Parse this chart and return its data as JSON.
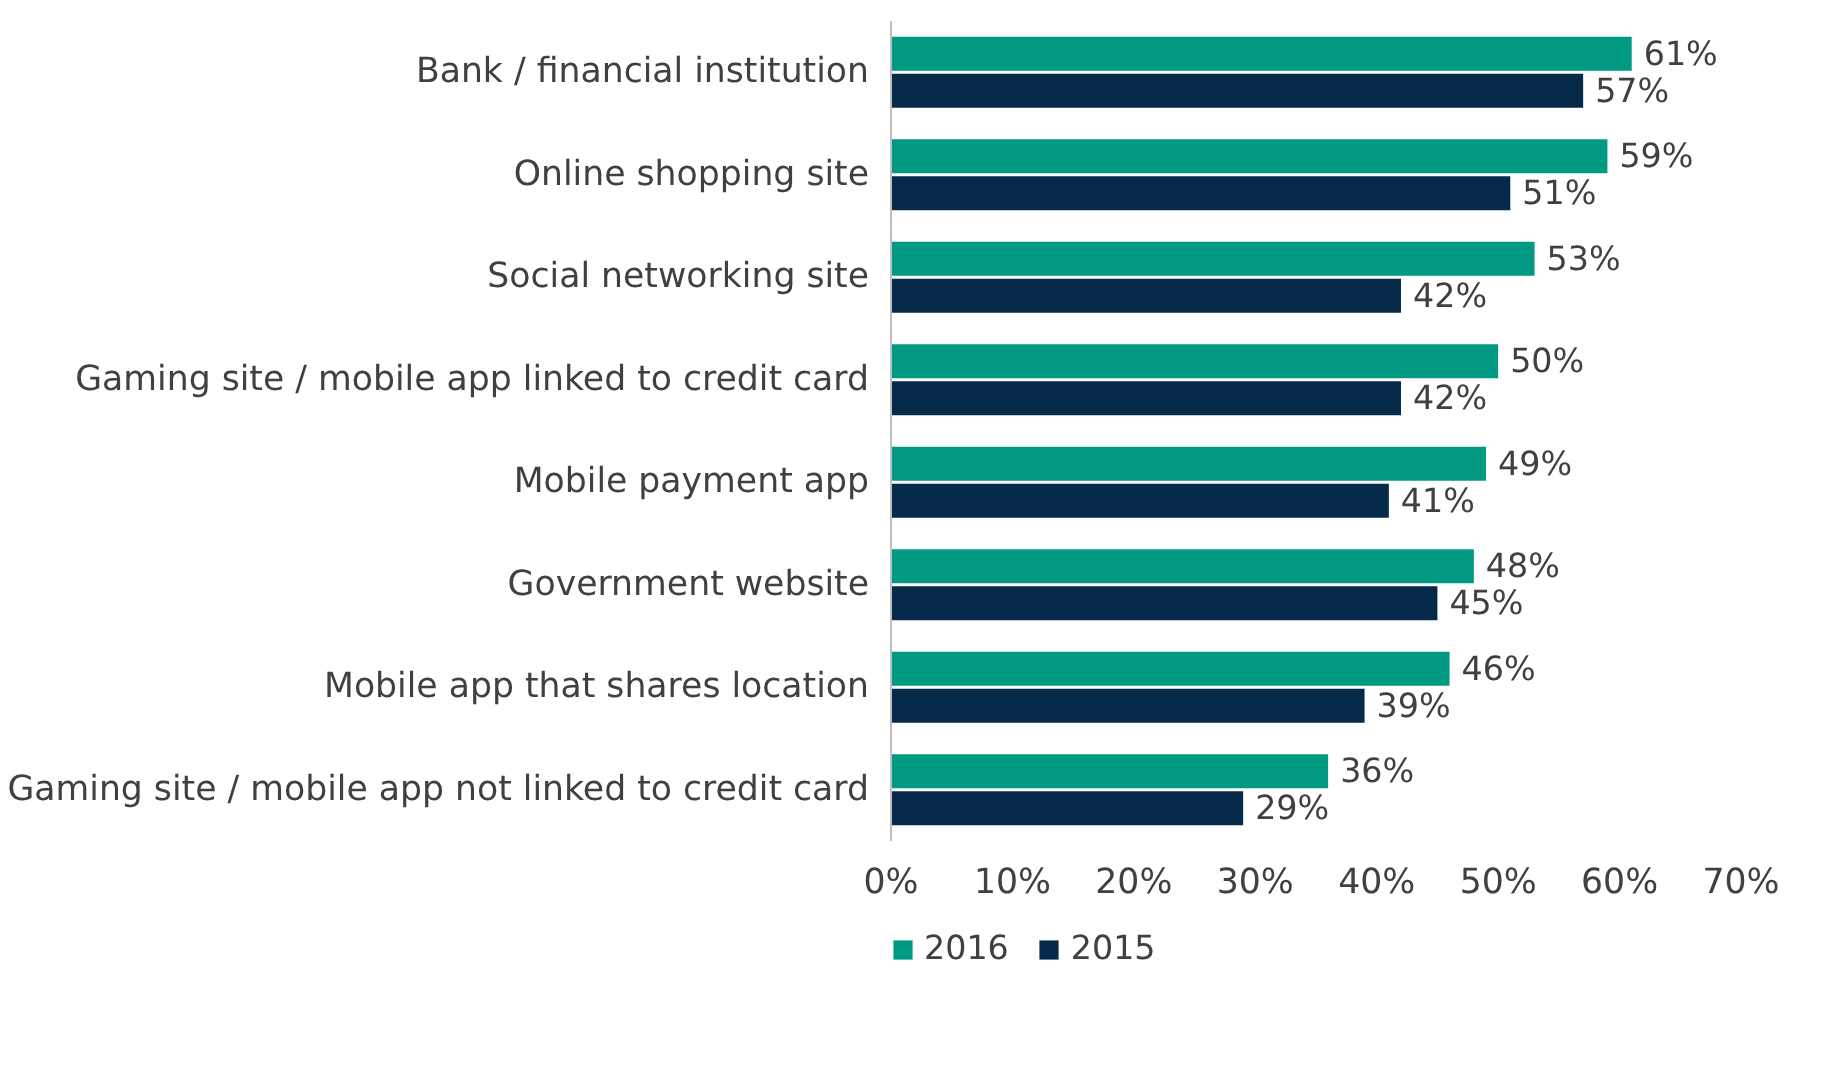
{
  "chart_data": {
    "type": "bar",
    "orientation": "horizontal",
    "categories": [
      "Bank / financial institution",
      "Online shopping site",
      "Social networking site",
      "Gaming site / mobile app linked to credit card",
      "Mobile payment app",
      "Government website",
      "Mobile app that shares location",
      "Gaming site / mobile app not linked to credit card"
    ],
    "series": [
      {
        "name": "2016",
        "color": "#009a82",
        "values": [
          61,
          59,
          53,
          50,
          49,
          48,
          46,
          36
        ],
        "value_labels": [
          "61%",
          "59%",
          "53%",
          "50%",
          "49%",
          "48%",
          "46%",
          "36%"
        ]
      },
      {
        "name": "2015",
        "color": "#062a4a",
        "values": [
          57,
          51,
          42,
          42,
          41,
          45,
          39,
          29
        ],
        "value_labels": [
          "57%",
          "51%",
          "42%",
          "42%",
          "41%",
          "45%",
          "39%",
          "29%"
        ]
      }
    ],
    "xlim": [
      0,
      70
    ],
    "xticks": [
      {
        "value": 0,
        "label": "0%"
      },
      {
        "value": 10,
        "label": "10%"
      },
      {
        "value": 20,
        "label": "20%"
      },
      {
        "value": 30,
        "label": "30%"
      },
      {
        "value": 40,
        "label": "40%"
      },
      {
        "value": 50,
        "label": "50%"
      },
      {
        "value": 60,
        "label": "60%"
      },
      {
        "value": 70,
        "label": "70%"
      }
    ],
    "grid": false,
    "legend": "bottom"
  }
}
